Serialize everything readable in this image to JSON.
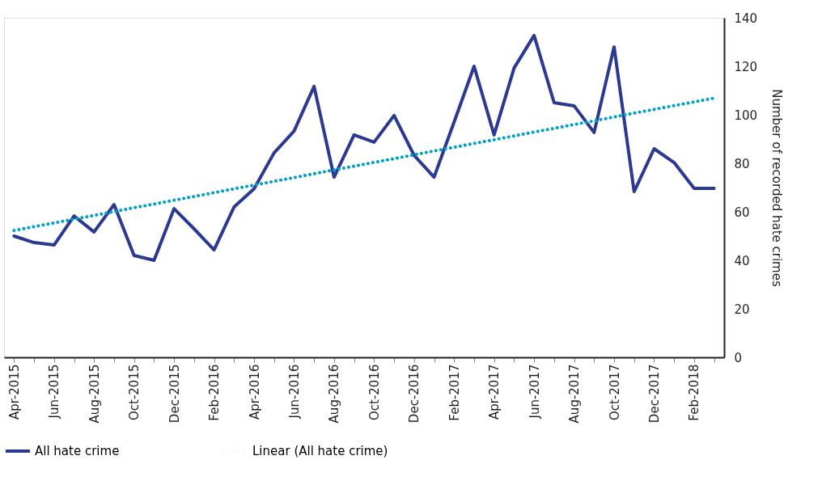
{
  "chart_data": {
    "type": "line",
    "categories": [
      "Apr-2015",
      null,
      "Jun-2015",
      null,
      "Aug-2015",
      null,
      "Oct-2015",
      null,
      "Dec-2015",
      null,
      "Feb-2016",
      null,
      "Apr-2016",
      null,
      "Jun-2016",
      null,
      "Aug-2016",
      null,
      "Oct-2016",
      null,
      "Dec-2016",
      null,
      "Feb-2017",
      null,
      "Apr-2017",
      null,
      "Jun-2017",
      null,
      "Aug-2017",
      null,
      "Oct-2017",
      null,
      "Dec-2017",
      null,
      "Feb-2018",
      null
    ],
    "series": [
      {
        "name": "All hate crime",
        "color": "#2b3990",
        "line_style": "solid",
        "values": [
          50,
          47.3,
          46.3,
          58.3,
          51.7,
          63,
          42,
          40,
          61.3,
          53,
          44.3,
          62,
          69.5,
          84.3,
          93.3,
          111.7,
          74.3,
          91.7,
          88.7,
          99.7,
          83.3,
          74.3,
          97,
          120,
          91.7,
          119.3,
          132.7,
          105,
          103.7,
          92.7,
          128,
          68.3,
          86,
          80.3,
          69.7,
          69.7
        ]
      },
      {
        "name": "Linear (All hate crime)",
        "color": "#00a0c8",
        "line_style": "dotted",
        "values": [
          52.3,
          53.9,
          55.4,
          57.0,
          58.5,
          60.1,
          61.7,
          63.2,
          64.8,
          66.3,
          67.9,
          69.5,
          71.0,
          72.6,
          74.1,
          75.7,
          77.3,
          78.8,
          80.4,
          81.9,
          83.5,
          85.1,
          86.6,
          88.2,
          89.7,
          91.3,
          92.9,
          94.4,
          96.0,
          97.5,
          99.1,
          100.7,
          102.2,
          103.8,
          105.3,
          106.9
        ]
      }
    ],
    "ylabel": "Number of recorded hate crimes",
    "ylim": [
      0,
      140
    ],
    "yticks": [
      0,
      20,
      40,
      60,
      80,
      100,
      120,
      140
    ],
    "grid": false,
    "legend": "bottom",
    "marker": "none"
  }
}
